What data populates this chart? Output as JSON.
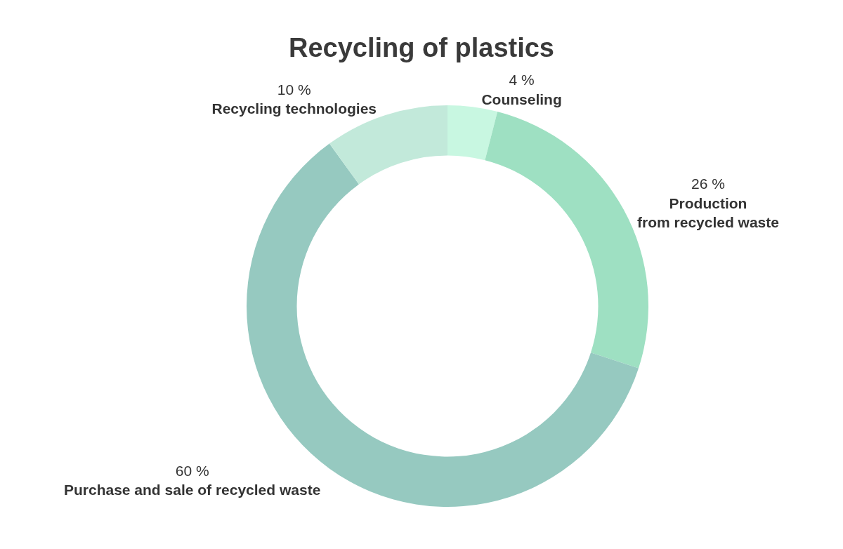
{
  "chart_data": {
    "type": "donut",
    "title": "Recycling of plastics",
    "categories": [
      "Counseling",
      "Production\nfrom recycled waste",
      "Purchase and sale of recycled waste",
      "Recycling technologies"
    ],
    "values": [
      4,
      26,
      60,
      10
    ],
    "value_labels": [
      "4 %",
      "26 %",
      "60 %",
      "10 %"
    ],
    "colors": [
      "#c8f7e1",
      "#9ee0c2",
      "#96c9c0",
      "#c2e9da"
    ],
    "legend": false
  }
}
